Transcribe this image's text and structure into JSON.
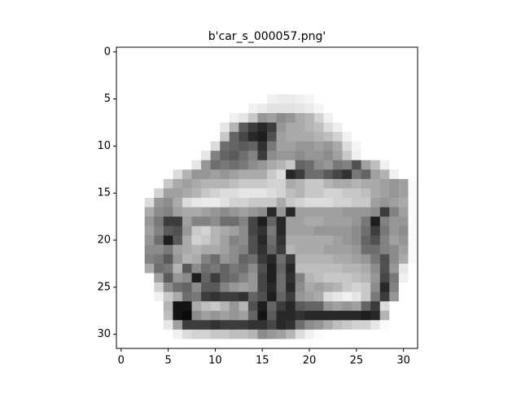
{
  "chart_data": {
    "type": "heatmap",
    "title": "b'car_s_000057.png'",
    "xlim": [
      -0.5,
      31.5
    ],
    "ylim": [
      31.5,
      -0.5
    ],
    "xticks": [
      0,
      5,
      10,
      15,
      20,
      25,
      30
    ],
    "yticks": [
      0,
      5,
      10,
      15,
      20,
      25,
      30
    ],
    "values": [
      [
        255,
        255,
        255,
        255,
        255,
        255,
        255,
        255,
        255,
        255,
        255,
        255,
        255,
        255,
        255,
        255,
        255,
        255,
        255,
        255,
        255,
        255,
        255,
        255,
        255,
        255,
        255,
        255,
        255,
        255,
        255,
        255
      ],
      [
        255,
        255,
        255,
        255,
        255,
        255,
        255,
        255,
        255,
        255,
        255,
        255,
        255,
        255,
        255,
        255,
        255,
        255,
        255,
        255,
        255,
        255,
        255,
        255,
        255,
        255,
        255,
        255,
        255,
        255,
        255,
        255
      ],
      [
        255,
        255,
        255,
        255,
        255,
        255,
        255,
        255,
        255,
        255,
        255,
        255,
        255,
        255,
        255,
        255,
        255,
        255,
        255,
        255,
        255,
        255,
        255,
        255,
        255,
        255,
        255,
        255,
        255,
        255,
        255,
        255
      ],
      [
        255,
        255,
        255,
        255,
        255,
        255,
        255,
        255,
        255,
        255,
        255,
        255,
        255,
        255,
        255,
        255,
        255,
        255,
        255,
        255,
        255,
        255,
        255,
        255,
        255,
        255,
        255,
        255,
        255,
        255,
        255,
        255
      ],
      [
        255,
        255,
        255,
        255,
        255,
        255,
        255,
        255,
        255,
        255,
        255,
        255,
        255,
        255,
        255,
        255,
        255,
        255,
        255,
        255,
        255,
        255,
        255,
        255,
        255,
        255,
        255,
        255,
        255,
        255,
        255,
        255
      ],
      [
        255,
        255,
        255,
        255,
        255,
        255,
        255,
        255,
        255,
        255,
        255,
        255,
        255,
        255,
        255,
        255,
        240,
        235,
        235,
        240,
        245,
        255,
        255,
        255,
        255,
        255,
        255,
        255,
        255,
        255,
        255,
        255
      ],
      [
        255,
        255,
        255,
        255,
        255,
        255,
        255,
        255,
        255,
        255,
        255,
        255,
        255,
        255,
        240,
        235,
        225,
        225,
        225,
        230,
        235,
        245,
        255,
        255,
        255,
        255,
        255,
        255,
        255,
        255,
        255,
        255
      ],
      [
        255,
        255,
        255,
        255,
        255,
        255,
        255,
        255,
        255,
        255,
        255,
        255,
        240,
        230,
        200,
        150,
        160,
        140,
        150,
        170,
        180,
        210,
        240,
        255,
        255,
        255,
        255,
        255,
        255,
        255,
        255,
        255
      ],
      [
        255,
        255,
        255,
        255,
        255,
        255,
        255,
        255,
        255,
        255,
        255,
        230,
        180,
        90,
        60,
        40,
        60,
        150,
        170,
        170,
        180,
        190,
        220,
        240,
        255,
        255,
        255,
        255,
        255,
        255,
        255,
        255
      ],
      [
        255,
        255,
        255,
        255,
        255,
        255,
        255,
        255,
        255,
        255,
        255,
        200,
        100,
        70,
        40,
        30,
        80,
        160,
        170,
        170,
        170,
        180,
        190,
        210,
        240,
        255,
        255,
        255,
        255,
        255,
        255,
        255
      ],
      [
        255,
        255,
        255,
        255,
        255,
        255,
        255,
        255,
        255,
        255,
        220,
        110,
        100,
        90,
        100,
        50,
        120,
        160,
        160,
        150,
        150,
        160,
        150,
        170,
        220,
        245,
        255,
        255,
        255,
        255,
        255,
        255
      ],
      [
        255,
        255,
        255,
        255,
        255,
        255,
        255,
        255,
        255,
        230,
        130,
        100,
        90,
        110,
        130,
        60,
        140,
        150,
        150,
        140,
        150,
        150,
        140,
        160,
        200,
        240,
        255,
        255,
        255,
        255,
        255,
        255
      ],
      [
        255,
        255,
        255,
        255,
        255,
        255,
        255,
        255,
        230,
        150,
        110,
        120,
        110,
        120,
        140,
        150,
        170,
        180,
        200,
        100,
        110,
        140,
        150,
        120,
        130,
        80,
        160,
        190,
        240,
        255,
        255,
        255
      ],
      [
        255,
        255,
        255,
        255,
        255,
        255,
        220,
        180,
        150,
        150,
        160,
        150,
        160,
        170,
        170,
        170,
        200,
        220,
        40,
        60,
        110,
        110,
        90,
        70,
        50,
        120,
        100,
        160,
        180,
        240,
        255,
        255
      ],
      [
        255,
        255,
        255,
        255,
        255,
        200,
        170,
        160,
        170,
        180,
        180,
        180,
        190,
        200,
        200,
        200,
        210,
        210,
        170,
        180,
        200,
        200,
        180,
        170,
        170,
        180,
        170,
        170,
        160,
        150,
        160,
        250
      ],
      [
        255,
        255,
        255,
        255,
        210,
        160,
        160,
        170,
        180,
        200,
        210,
        220,
        220,
        230,
        230,
        230,
        220,
        210,
        190,
        180,
        200,
        200,
        210,
        210,
        200,
        200,
        190,
        170,
        160,
        150,
        160,
        250
      ],
      [
        255,
        255,
        255,
        220,
        150,
        140,
        170,
        220,
        230,
        235,
        235,
        225,
        210,
        210,
        200,
        200,
        200,
        170,
        200,
        210,
        220,
        220,
        220,
        210,
        210,
        200,
        200,
        160,
        150,
        160,
        170,
        250
      ],
      [
        255,
        255,
        255,
        170,
        140,
        130,
        160,
        170,
        170,
        160,
        150,
        140,
        150,
        160,
        150,
        140,
        40,
        150,
        40,
        160,
        160,
        160,
        160,
        160,
        150,
        150,
        150,
        140,
        60,
        130,
        160,
        250
      ],
      [
        255,
        255,
        255,
        150,
        120,
        60,
        60,
        160,
        130,
        130,
        140,
        110,
        110,
        130,
        70,
        30,
        100,
        40,
        160,
        160,
        170,
        170,
        160,
        160,
        160,
        150,
        120,
        30,
        130,
        150,
        150,
        250
      ],
      [
        255,
        255,
        255,
        160,
        130,
        90,
        80,
        150,
        200,
        210,
        180,
        170,
        160,
        140,
        70,
        50,
        120,
        40,
        160,
        160,
        160,
        150,
        150,
        150,
        150,
        140,
        110,
        60,
        120,
        150,
        140,
        250
      ],
      [
        255,
        255,
        255,
        150,
        110,
        30,
        90,
        170,
        210,
        200,
        180,
        160,
        130,
        140,
        80,
        40,
        110,
        50,
        170,
        170,
        170,
        170,
        170,
        160,
        150,
        140,
        100,
        80,
        130,
        160,
        150,
        250
      ],
      [
        255,
        255,
        255,
        140,
        140,
        120,
        160,
        170,
        180,
        170,
        170,
        160,
        140,
        130,
        80,
        50,
        100,
        60,
        180,
        170,
        170,
        170,
        160,
        160,
        160,
        150,
        110,
        110,
        130,
        140,
        160,
        250
      ],
      [
        255,
        255,
        255,
        130,
        120,
        90,
        150,
        180,
        170,
        130,
        110,
        150,
        140,
        100,
        110,
        60,
        40,
        110,
        60,
        180,
        180,
        180,
        180,
        170,
        170,
        160,
        150,
        120,
        80,
        140,
        170,
        250
      ],
      [
        255,
        255,
        255,
        170,
        110,
        120,
        180,
        90,
        140,
        110,
        120,
        100,
        120,
        110,
        140,
        80,
        30,
        100,
        40,
        190,
        190,
        190,
        190,
        190,
        180,
        180,
        170,
        140,
        80,
        150,
        230,
        255
      ],
      [
        255,
        255,
        255,
        255,
        160,
        90,
        150,
        140,
        30,
        100,
        60,
        100,
        110,
        130,
        150,
        70,
        30,
        110,
        50,
        130,
        180,
        190,
        200,
        200,
        200,
        190,
        180,
        150,
        70,
        120,
        240,
        255
      ],
      [
        255,
        255,
        255,
        255,
        210,
        140,
        110,
        100,
        140,
        90,
        90,
        130,
        150,
        160,
        150,
        70,
        40,
        110,
        40,
        140,
        170,
        160,
        170,
        180,
        200,
        210,
        200,
        140,
        40,
        130,
        255,
        255
      ],
      [
        255,
        255,
        255,
        255,
        240,
        200,
        170,
        110,
        120,
        60,
        50,
        60,
        60,
        50,
        100,
        80,
        30,
        100,
        60,
        150,
        160,
        170,
        220,
        230,
        240,
        230,
        200,
        120,
        60,
        150,
        255,
        255
      ],
      [
        255,
        255,
        255,
        255,
        255,
        180,
        20,
        20,
        170,
        190,
        200,
        180,
        150,
        180,
        80,
        30,
        100,
        60,
        40,
        90,
        100,
        100,
        150,
        160,
        150,
        160,
        100,
        60,
        220,
        255,
        255,
        255
      ],
      [
        255,
        255,
        255,
        255,
        255,
        190,
        20,
        10,
        140,
        160,
        150,
        160,
        150,
        160,
        100,
        20,
        90,
        40,
        40,
        50,
        40,
        40,
        40,
        40,
        40,
        40,
        30,
        40,
        180,
        255,
        255,
        255
      ],
      [
        255,
        255,
        255,
        255,
        255,
        230,
        160,
        60,
        60,
        60,
        50,
        60,
        60,
        60,
        50,
        50,
        70,
        40,
        50,
        110,
        140,
        150,
        170,
        190,
        200,
        210,
        210,
        230,
        250,
        255,
        255,
        255
      ],
      [
        255,
        255,
        255,
        255,
        255,
        255,
        240,
        220,
        210,
        210,
        200,
        200,
        190,
        190,
        180,
        140,
        150,
        160,
        180,
        220,
        240,
        250,
        255,
        255,
        255,
        255,
        255,
        255,
        255,
        255,
        255,
        255
      ],
      [
        255,
        255,
        255,
        255,
        255,
        255,
        255,
        255,
        255,
        255,
        255,
        255,
        255,
        255,
        255,
        255,
        255,
        255,
        255,
        255,
        255,
        255,
        255,
        255,
        255,
        255,
        255,
        255,
        255,
        255,
        255,
        255
      ]
    ]
  }
}
